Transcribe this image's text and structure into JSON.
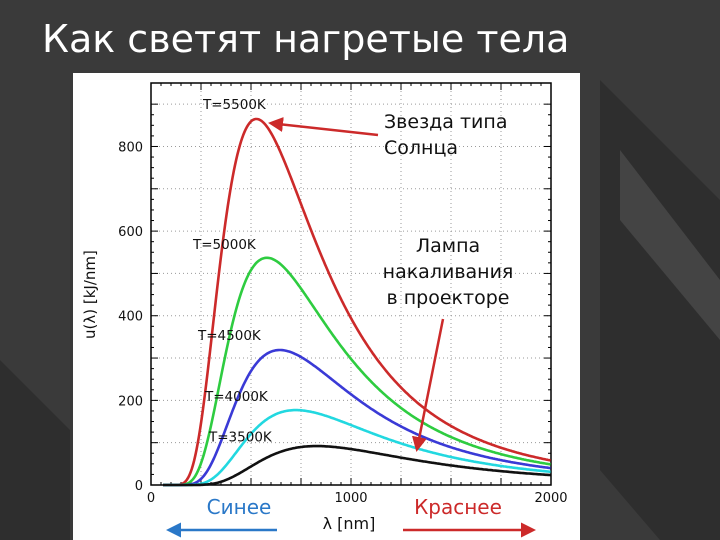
{
  "slide": {
    "title": "Как светят нагретые тела"
  },
  "colors": {
    "background": "#3a3a3a",
    "title": "#ffffff",
    "panel": "#ffffff"
  },
  "chart_data": {
    "type": "line",
    "xlabel": "λ [nm]",
    "ylabel": "u(λ) [kJ/nm]",
    "xlim": [
      0,
      2000
    ],
    "ylim": [
      0,
      950
    ],
    "xticks": [
      0,
      1000,
      2000
    ],
    "yticks": [
      0,
      200,
      400,
      600,
      800
    ],
    "grid": true,
    "series": [
      {
        "name": "T=5500K",
        "T": 5500,
        "color": "#cc2a2a",
        "peak_x": 527,
        "peak_y": 865,
        "label_x": 260,
        "label_y": 900
      },
      {
        "name": "T=5000K",
        "T": 5000,
        "color": "#2ecc40",
        "peak_x": 580,
        "peak_y": 537,
        "label_x": 210,
        "label_y": 570
      },
      {
        "name": "T=4500K",
        "T": 4500,
        "color": "#3a3ad6",
        "peak_x": 644,
        "peak_y": 319,
        "label_x": 235,
        "label_y": 355
      },
      {
        "name": "T=4000K",
        "T": 4000,
        "color": "#22d8e0",
        "peak_x": 724,
        "peak_y": 177,
        "label_x": 270,
        "label_y": 210
      },
      {
        "name": "T=3500K",
        "T": 3500,
        "color": "#111111",
        "peak_x": 828,
        "peak_y": 92,
        "label_x": 290,
        "label_y": 115
      }
    ],
    "annotations": [
      {
        "text": "Звезда типа Солнца",
        "line1": "Звезда типа",
        "line2": "Солнца",
        "arrow_to": [
          600,
          855
        ],
        "color": "#cc2a2a"
      },
      {
        "text": "Лампа накаливания в проекторе",
        "line1": "Лампа",
        "line2": "накаливания",
        "line3": "в проекторе",
        "arrow_to": [
          1330,
          85
        ],
        "color": "#cc2a2a"
      },
      {
        "text": "Синее",
        "color": "#2a78c8"
      },
      {
        "text": "Краснее",
        "color": "#cc2a2a"
      }
    ]
  }
}
